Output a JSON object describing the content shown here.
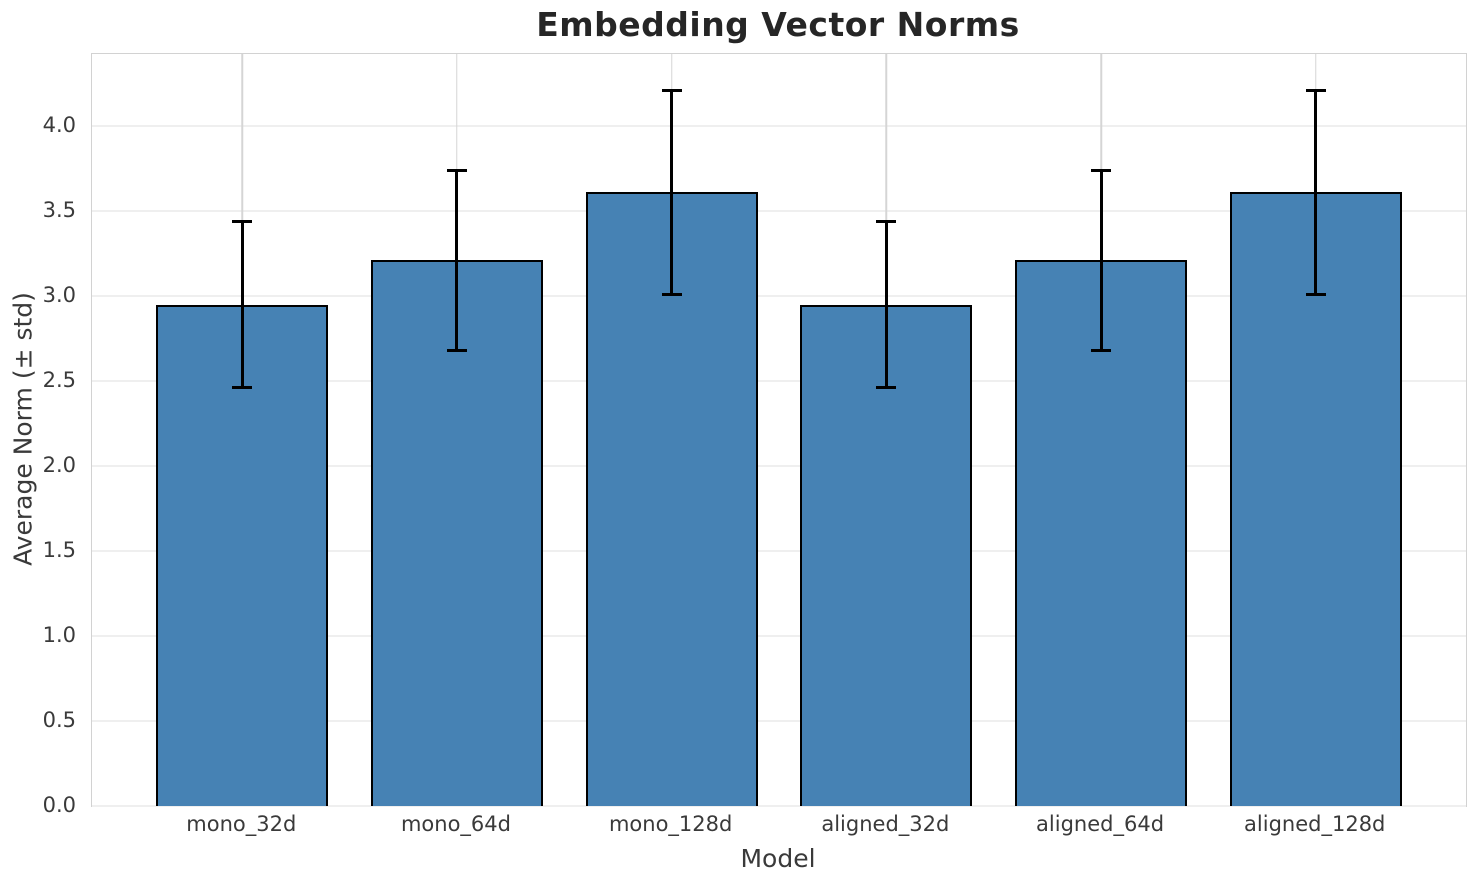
{
  "chart_data": {
    "type": "bar",
    "title": "Embedding Vector Norms",
    "xlabel": "Model",
    "ylabel": "Average Norm (± std)",
    "categories": [
      "mono_32d",
      "mono_64d",
      "mono_128d",
      "aligned_32d",
      "aligned_64d",
      "aligned_128d"
    ],
    "values": [
      2.95,
      3.21,
      3.61,
      2.95,
      3.21,
      3.61
    ],
    "errors": [
      0.49,
      0.53,
      0.6,
      0.49,
      0.53,
      0.6
    ],
    "error_style": "symmetric ± std with caps",
    "yticks": [
      0.0,
      0.5,
      1.0,
      1.5,
      2.0,
      2.5,
      3.0,
      3.5,
      4.0
    ],
    "ytick_labels": [
      "0.0",
      "0.5",
      "1.0",
      "1.5",
      "2.0",
      "2.5",
      "3.0",
      "3.5",
      "4.0"
    ],
    "ylim": [
      0,
      4.424
    ],
    "xlim": [
      -0.7,
      5.7
    ],
    "bar_width": 0.8,
    "grid": true,
    "legend": "none",
    "colors": {
      "bar_fill": "#4682B4",
      "bar_edge": "#000000",
      "error": "#000000",
      "grid_horizontal": "#efefef",
      "grid_vertical": "#d5d5d5",
      "spine": "#d2d2d2",
      "text": "#3a3a3a",
      "title": "#262626",
      "background": "#ffffff"
    }
  }
}
